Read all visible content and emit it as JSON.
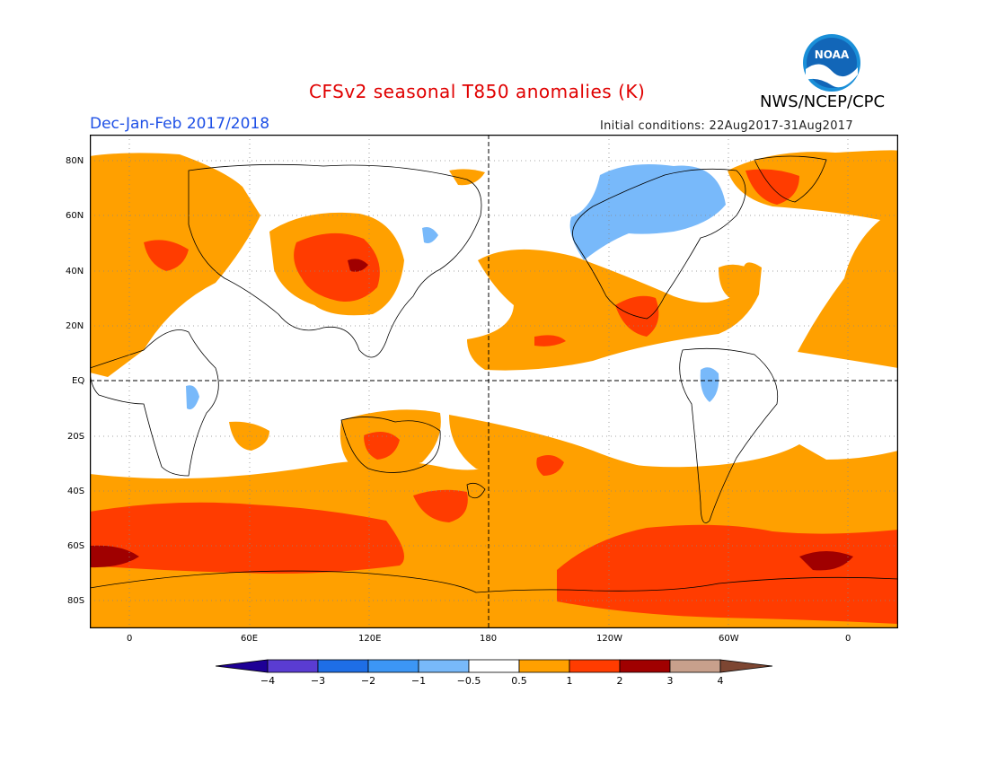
{
  "header": {
    "title": "CFSv2 seasonal T850 anomalies (K)",
    "agency": "NWS/NCEP/CPC",
    "season": "Dec-Jan-Feb 2017/2018",
    "initial_conditions": "Initial conditions: 22Aug2017-31Aug2017",
    "logo_text": "NOAA"
  },
  "map": {
    "lat_labels": [
      "80N",
      "60N",
      "40N",
      "20N",
      "EQ",
      "20S",
      "40S",
      "60S",
      "80S"
    ],
    "lon_labels": [
      "0",
      "60E",
      "120E",
      "180",
      "120W",
      "60W",
      "0"
    ],
    "ocean_color": "#ffffff",
    "land_outline_color": "#000000"
  },
  "colorbar": {
    "labels": [
      "−4",
      "−3",
      "−2",
      "−1",
      "−0.5",
      "0.5",
      "1",
      "2",
      "3",
      "4"
    ],
    "colors": [
      "#1e0096",
      "#5a3cd2",
      "#1e6ee6",
      "#3c96f5",
      "#78b9fa",
      "#ffffff",
      "#ffa000",
      "#ff3c00",
      "#a00000",
      "#c8a08c",
      "#7d4632"
    ]
  }
}
